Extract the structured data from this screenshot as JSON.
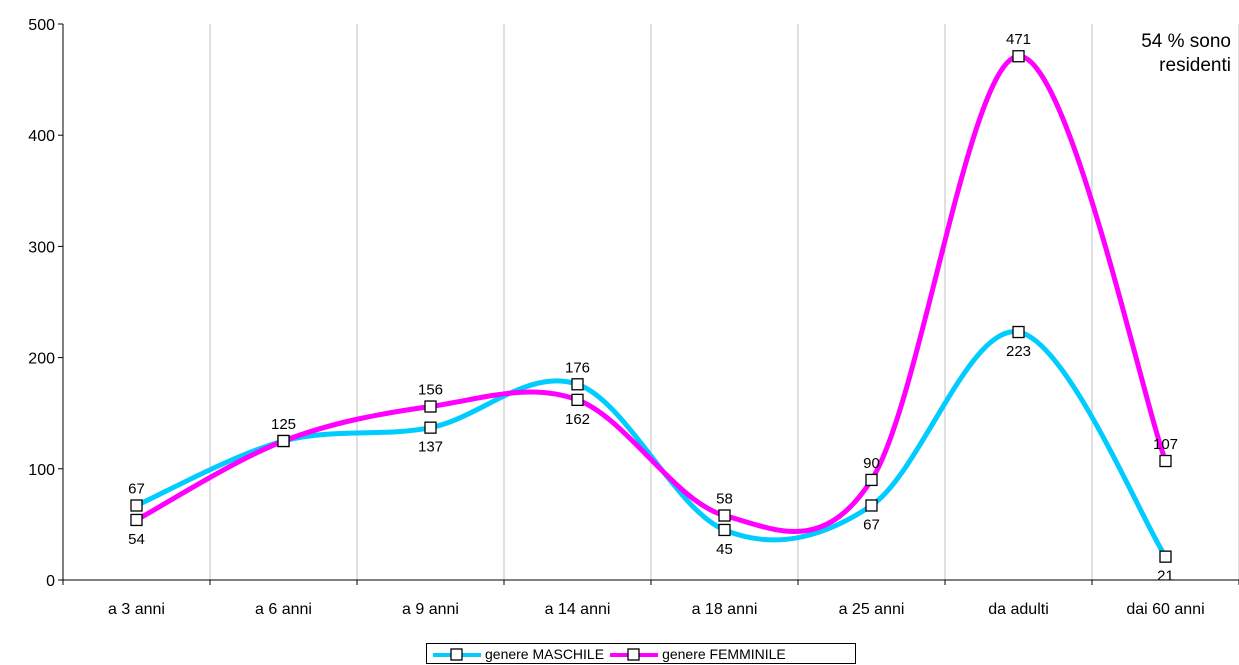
{
  "chart_data": {
    "type": "line",
    "smooth": true,
    "categories": [
      "a 3 anni",
      "a 6 anni",
      "a 9 anni",
      "a 14 anni",
      "a 18 anni",
      "a 25 anni",
      "da adulti",
      "dai 60 anni"
    ],
    "series": [
      {
        "name": "genere MASCHILE",
        "color": "#00CCFF",
        "values": [
          67,
          125,
          137,
          176,
          45,
          67,
          223,
          21
        ]
      },
      {
        "name": "genere FEMMINILE",
        "color": "#FF00FF",
        "values": [
          54,
          125,
          156,
          162,
          58,
          90,
          471,
          107
        ]
      }
    ],
    "ylim": [
      0,
      500
    ],
    "yticks": [
      0,
      100,
      200,
      300,
      400,
      500
    ],
    "grid": "vertical",
    "legend": "bottom",
    "marker": "hollow-square",
    "annotation": [
      "54 % sono",
      "residenti"
    ]
  }
}
